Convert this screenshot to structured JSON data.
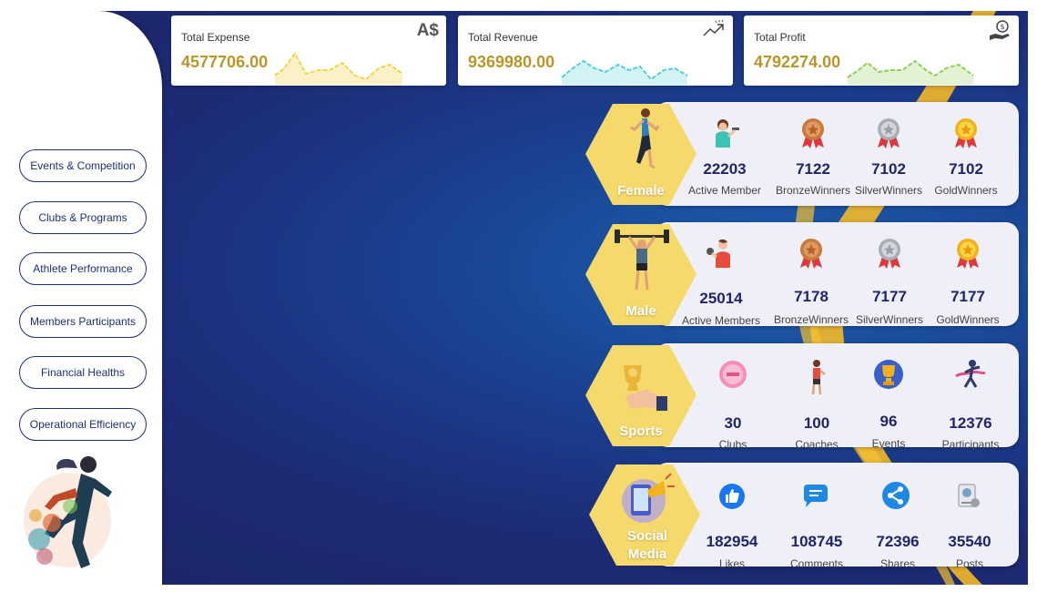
{
  "sidebar": {
    "nav": [
      {
        "label": "Events & Competition"
      },
      {
        "label": "Clubs & Programs"
      },
      {
        "label": "Athlete Performance"
      },
      {
        "label": "Members Participants"
      },
      {
        "label": "Financial Healths"
      },
      {
        "label": "Operational Efficiency"
      }
    ],
    "illustration": "runner-watercolor-icon"
  },
  "kpis": [
    {
      "label": "Total Expense",
      "value": "4577706.00",
      "icon_text": "A$",
      "spark_color": "#f2d54a",
      "spark_fill": "#fbf1c6"
    },
    {
      "label": "Total Revenue",
      "value": "9369980.00",
      "icon": "trend-up-icon",
      "spark_color": "#55d0d6",
      "spark_fill": "#d2f3f4"
    },
    {
      "label": "Total Profit",
      "value": "4792274.00",
      "icon": "money-hand-icon",
      "spark_color": "#8fcf5a",
      "spark_fill": "#e2f3d4"
    }
  ],
  "panels": {
    "female": {
      "title": "Female",
      "stats": [
        {
          "value": "22203",
          "label": "Active Member",
          "icon": "woman-dumbbell-icon"
        },
        {
          "value": "7122",
          "label": "BronzeWinners",
          "icon": "bronze-medal-icon"
        },
        {
          "value": "7102",
          "label": "SilverWinners",
          "icon": "silver-medal-icon"
        },
        {
          "value": "7102",
          "label": "GoldWinners",
          "icon": "gold-medal-icon"
        }
      ]
    },
    "male": {
      "title": "Male",
      "stats": [
        {
          "value": "25014",
          "label": "Active Members",
          "icon": "man-dumbbell-icon"
        },
        {
          "value": "7178",
          "label": "BronzeWinners",
          "icon": "bronze-medal-icon"
        },
        {
          "value": "7177",
          "label": "SilverWinners",
          "icon": "silver-medal-icon"
        },
        {
          "value": "7177",
          "label": "GoldWinners",
          "icon": "gold-medal-icon"
        }
      ]
    },
    "sports": {
      "title": "Sports",
      "stats": [
        {
          "value": "30",
          "label": "Clubs",
          "icon": "club-badge-icon"
        },
        {
          "value": "100",
          "label": "Coaches",
          "icon": "coach-icon"
        },
        {
          "value": "96",
          "label": "Events",
          "icon": "trophy-icon"
        },
        {
          "value": "12376",
          "label": "Participants",
          "icon": "runner-finish-icon"
        }
      ]
    },
    "social": {
      "title": "Social Media",
      "stats": [
        {
          "value": "182954",
          "label": "Likes",
          "icon": "like-icon"
        },
        {
          "value": "108745",
          "label": "Comments",
          "icon": "comment-icon"
        },
        {
          "value": "72396",
          "label": "Shares",
          "icon": "share-icon"
        },
        {
          "value": "35540",
          "label": "Posts",
          "icon": "post-icon"
        }
      ]
    }
  },
  "colors": {
    "navy": "#1f2f74",
    "gold": "#b8962a",
    "hex_yellow": "#f5d96a"
  }
}
